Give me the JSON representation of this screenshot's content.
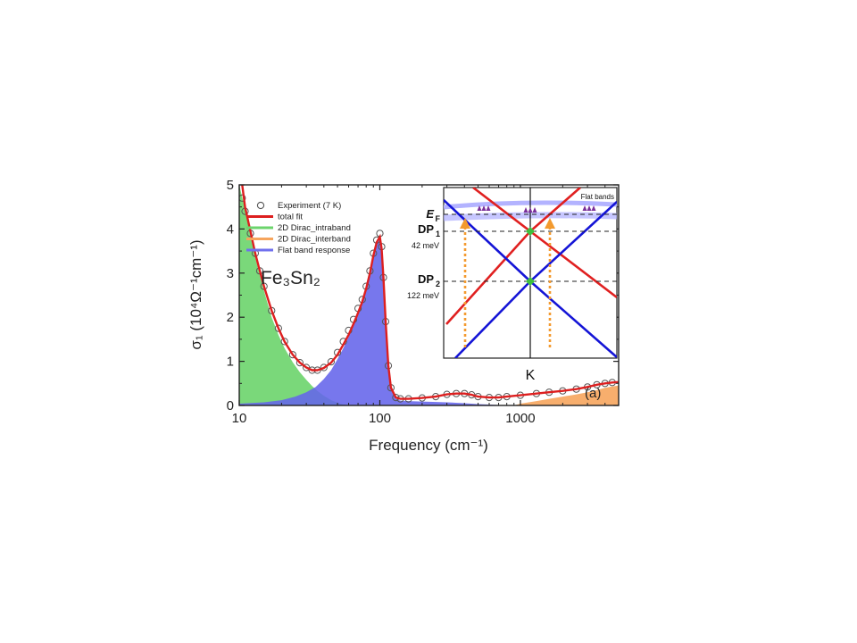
{
  "chart_data": {
    "type": "area",
    "xscale": "log",
    "xlim": [
      10,
      5000
    ],
    "ylim": [
      0,
      5
    ],
    "x_ticks": [
      "10",
      "100",
      "1000"
    ],
    "y_ticks": [
      "0",
      "1",
      "2",
      "3",
      "4",
      "5"
    ],
    "xlabel": "Frequency (cm⁻¹)",
    "ylabel": "σ₁ (10⁴Ω⁻¹cm⁻¹)",
    "material_label": "Fe₃Sn₂",
    "panel_label": "(a)",
    "legend": {
      "placement": "top-left",
      "entries": [
        {
          "name": "Experiment (7 K)",
          "color": "#555555",
          "style": "open-circle"
        },
        {
          "name": "total fit",
          "color": "#dd1f1f",
          "style": "line"
        },
        {
          "name": "2D Dirac_intraband",
          "color": "#6cd46c",
          "style": "line"
        },
        {
          "name": "2D Dirac_interband",
          "color": "#f6a55d",
          "style": "line"
        },
        {
          "name": "Flat band response",
          "color": "#7070ee",
          "style": "line"
        }
      ]
    },
    "series": [
      {
        "name": "Experiment (7 K)",
        "kind": "scatter",
        "x": [
          10.5,
          11,
          12,
          13,
          14,
          15,
          17,
          19,
          21,
          24,
          27,
          30,
          33,
          36,
          40,
          45,
          50,
          55,
          60,
          65,
          70,
          75,
          80,
          85,
          90,
          95,
          100,
          103,
          106,
          110,
          115,
          120,
          130,
          140,
          160,
          200,
          250,
          300,
          350,
          400,
          450,
          500,
          600,
          700,
          800,
          1000,
          1300,
          1600,
          2000,
          2500,
          3000,
          3500,
          4000,
          4500
        ],
        "y": [
          4.7,
          4.4,
          3.9,
          3.45,
          3.05,
          2.7,
          2.15,
          1.75,
          1.45,
          1.15,
          0.97,
          0.86,
          0.8,
          0.8,
          0.86,
          0.99,
          1.2,
          1.45,
          1.7,
          1.95,
          2.2,
          2.4,
          2.7,
          3.05,
          3.45,
          3.75,
          3.9,
          3.6,
          2.9,
          1.9,
          0.9,
          0.4,
          0.18,
          0.15,
          0.15,
          0.17,
          0.2,
          0.25,
          0.27,
          0.27,
          0.24,
          0.2,
          0.18,
          0.18,
          0.2,
          0.23,
          0.27,
          0.3,
          0.33,
          0.37,
          0.42,
          0.47,
          0.5,
          0.52
        ]
      },
      {
        "name": "total fit",
        "kind": "line",
        "x": [
          10.5,
          11,
          12,
          13,
          14,
          15,
          17,
          19,
          21,
          24,
          27,
          30,
          33,
          36,
          40,
          45,
          50,
          55,
          60,
          65,
          70,
          75,
          80,
          85,
          90,
          95,
          100,
          103,
          106,
          110,
          115,
          120,
          130,
          140,
          160,
          200,
          250,
          300,
          350,
          400,
          450,
          500,
          600,
          700,
          800,
          1000,
          1300,
          1600,
          2000,
          2500,
          3000,
          3500,
          4000,
          4500,
          5000
        ],
        "y": [
          5.0,
          4.5,
          3.95,
          3.45,
          3.05,
          2.7,
          2.15,
          1.75,
          1.45,
          1.15,
          0.97,
          0.86,
          0.8,
          0.8,
          0.85,
          0.97,
          1.15,
          1.38,
          1.6,
          1.85,
          2.1,
          2.35,
          2.65,
          3.0,
          3.4,
          3.7,
          3.82,
          3.55,
          2.9,
          1.9,
          0.9,
          0.4,
          0.18,
          0.15,
          0.15,
          0.17,
          0.2,
          0.25,
          0.27,
          0.27,
          0.24,
          0.2,
          0.18,
          0.18,
          0.2,
          0.23,
          0.27,
          0.3,
          0.33,
          0.37,
          0.42,
          0.47,
          0.5,
          0.52,
          0.53
        ]
      },
      {
        "name": "2D Dirac_intraband",
        "kind": "area",
        "x": [
          10,
          11,
          12,
          13,
          14,
          15,
          17,
          19,
          21,
          24,
          27,
          30,
          33,
          36,
          40,
          45,
          50,
          55,
          60
        ],
        "y": [
          5.0,
          4.45,
          3.85,
          3.35,
          2.95,
          2.6,
          2.0,
          1.6,
          1.3,
          0.98,
          0.75,
          0.58,
          0.44,
          0.33,
          0.22,
          0.12,
          0.06,
          0.02,
          0.0
        ]
      },
      {
        "name": "Flat band response",
        "kind": "area",
        "x": [
          10,
          15,
          20,
          25,
          30,
          35,
          40,
          45,
          50,
          55,
          60,
          65,
          70,
          75,
          80,
          85,
          90,
          95,
          100,
          103,
          106,
          110,
          115,
          120,
          130,
          140,
          160,
          200,
          300,
          400,
          500,
          600,
          700,
          800
        ],
        "y": [
          0.04,
          0.07,
          0.12,
          0.2,
          0.3,
          0.42,
          0.6,
          0.8,
          1.05,
          1.3,
          1.55,
          1.8,
          2.05,
          2.3,
          2.6,
          2.95,
          3.35,
          3.65,
          3.78,
          3.5,
          2.85,
          1.85,
          0.85,
          0.36,
          0.15,
          0.11,
          0.1,
          0.09,
          0.07,
          0.05,
          0.03,
          0.02,
          0.01,
          0.0
        ]
      },
      {
        "name": "2D Dirac_interband",
        "kind": "area",
        "x": [
          900,
          1000,
          1300,
          1600,
          2000,
          2500,
          3000,
          3500,
          4000,
          4500,
          5000
        ],
        "y": [
          0.0,
          0.04,
          0.1,
          0.15,
          0.2,
          0.25,
          0.3,
          0.35,
          0.4,
          0.43,
          0.45
        ]
      }
    ],
    "inset": {
      "type": "band-structure",
      "xlabel": "K",
      "levels": [
        {
          "label": "E",
          "sub": "F",
          "note": ""
        },
        {
          "label": "DP",
          "sub": "1",
          "note": "42 meV"
        },
        {
          "label": "DP",
          "sub": "2",
          "note": "122 meV"
        }
      ],
      "flat_band_label": "Flat bands",
      "colors": {
        "red": "#e02020",
        "blue": "#1414d6",
        "flat": "#b3b3ff",
        "flat_label": "#9933cc",
        "dirac_point": "#3fbf3f",
        "arrow": "#f39a2e",
        "electron": "#7a2f9a"
      }
    }
  }
}
